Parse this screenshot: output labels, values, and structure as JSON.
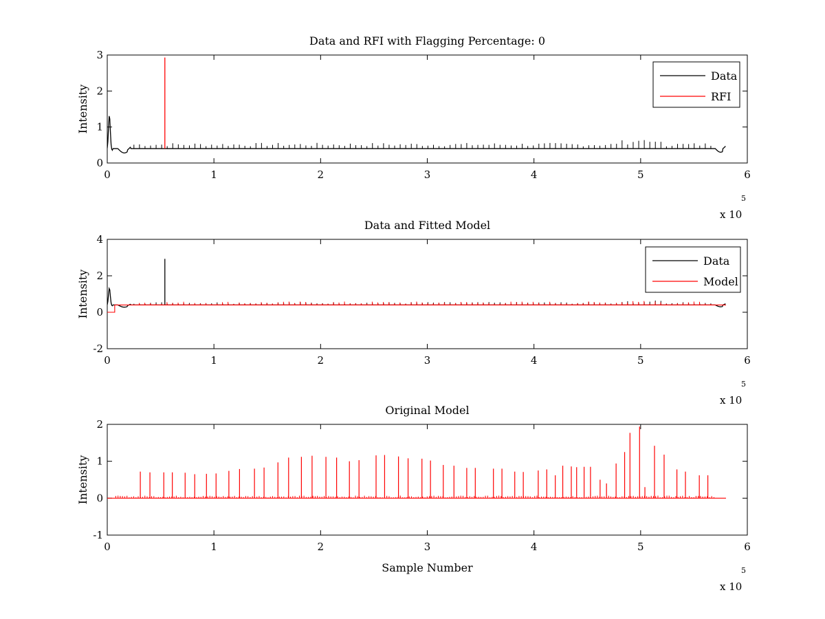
{
  "chart_data": [
    {
      "type": "line",
      "title": "Data and RFI with Flagging Percentage: 0",
      "xlabel": "",
      "ylabel": "Intensity",
      "xlim": [
        0,
        6
      ],
      "ylim": [
        0,
        3
      ],
      "xticks": [
        "0",
        "1",
        "2",
        "3",
        "4",
        "5",
        "6"
      ],
      "yticks": [
        "0",
        "1",
        "2",
        "3"
      ],
      "x_multiplier": "x 10",
      "x_multiplier_exp": "5",
      "legend_position": "top-right",
      "series": [
        {
          "name": "Data",
          "color": "#000000",
          "baseline": 0.4
        },
        {
          "name": "RFI",
          "color": "#ff0000",
          "spikes": [
            {
              "x": 0.54,
              "y": 2.93
            }
          ]
        }
      ]
    },
    {
      "type": "line",
      "title": "Data and Fitted Model",
      "xlabel": "",
      "ylabel": "Intensity",
      "xlim": [
        0,
        6
      ],
      "ylim": [
        -2,
        4
      ],
      "xticks": [
        "0",
        "1",
        "2",
        "3",
        "4",
        "5",
        "6"
      ],
      "yticks": [
        "-2",
        "0",
        "2",
        "4"
      ],
      "x_multiplier": "x 10",
      "x_multiplier_exp": "5",
      "legend_position": "top-right",
      "series": [
        {
          "name": "Data",
          "color": "#000000",
          "baseline": 0.4,
          "spikes": [
            {
              "x": 0.54,
              "y": 2.93
            }
          ]
        },
        {
          "name": "Model",
          "color": "#ff0000",
          "baseline": 0.4
        }
      ]
    },
    {
      "type": "line",
      "title": "Original Model",
      "xlabel": "Sample Number",
      "ylabel": "Intensity",
      "xlim": [
        0,
        6
      ],
      "ylim": [
        -1,
        2
      ],
      "xticks": [
        "0",
        "1",
        "2",
        "3",
        "4",
        "5",
        "6"
      ],
      "yticks": [
        "-1",
        "0",
        "1",
        "2"
      ],
      "x_multiplier": "x 10",
      "x_multiplier_exp": "5",
      "series": [
        {
          "name": "",
          "color": "#ff0000",
          "baseline": 0,
          "spikes": [
            {
              "x": 0.31,
              "y": 0.72
            },
            {
              "x": 0.4,
              "y": 0.7
            },
            {
              "x": 0.53,
              "y": 0.7
            },
            {
              "x": 0.61,
              "y": 0.7
            },
            {
              "x": 0.73,
              "y": 0.69
            },
            {
              "x": 0.82,
              "y": 0.65
            },
            {
              "x": 0.93,
              "y": 0.66
            },
            {
              "x": 1.02,
              "y": 0.67
            },
            {
              "x": 1.14,
              "y": 0.74
            },
            {
              "x": 1.24,
              "y": 0.79
            },
            {
              "x": 1.38,
              "y": 0.8
            },
            {
              "x": 1.47,
              "y": 0.83
            },
            {
              "x": 1.6,
              "y": 0.97
            },
            {
              "x": 1.7,
              "y": 1.1
            },
            {
              "x": 1.82,
              "y": 1.12
            },
            {
              "x": 1.92,
              "y": 1.15
            },
            {
              "x": 2.05,
              "y": 1.12
            },
            {
              "x": 2.15,
              "y": 1.1
            },
            {
              "x": 2.27,
              "y": 1.0
            },
            {
              "x": 2.36,
              "y": 1.03
            },
            {
              "x": 2.52,
              "y": 1.16
            },
            {
              "x": 2.6,
              "y": 1.17
            },
            {
              "x": 2.73,
              "y": 1.13
            },
            {
              "x": 2.82,
              "y": 1.08
            },
            {
              "x": 2.95,
              "y": 1.07
            },
            {
              "x": 3.03,
              "y": 1.02
            },
            {
              "x": 3.15,
              "y": 0.9
            },
            {
              "x": 3.25,
              "y": 0.88
            },
            {
              "x": 3.37,
              "y": 0.82
            },
            {
              "x": 3.45,
              "y": 0.82
            },
            {
              "x": 3.62,
              "y": 0.8
            },
            {
              "x": 3.7,
              "y": 0.8
            },
            {
              "x": 3.82,
              "y": 0.72
            },
            {
              "x": 3.9,
              "y": 0.71
            },
            {
              "x": 4.04,
              "y": 0.75
            },
            {
              "x": 4.12,
              "y": 0.78
            },
            {
              "x": 4.2,
              "y": 0.62
            },
            {
              "x": 4.27,
              "y": 0.88
            },
            {
              "x": 4.35,
              "y": 0.86
            },
            {
              "x": 4.4,
              "y": 0.84
            },
            {
              "x": 4.47,
              "y": 0.85
            },
            {
              "x": 4.53,
              "y": 0.85
            },
            {
              "x": 4.62,
              "y": 0.5
            },
            {
              "x": 4.68,
              "y": 0.4
            },
            {
              "x": 4.77,
              "y": 0.94
            },
            {
              "x": 4.85,
              "y": 1.25
            },
            {
              "x": 4.9,
              "y": 1.77
            },
            {
              "x": 4.99,
              "y": 1.94
            },
            {
              "x": 5.04,
              "y": 0.3
            },
            {
              "x": 5.13,
              "y": 1.42
            },
            {
              "x": 5.22,
              "y": 1.18
            },
            {
              "x": 5.34,
              "y": 0.78
            },
            {
              "x": 5.42,
              "y": 0.72
            },
            {
              "x": 5.55,
              "y": 0.62
            },
            {
              "x": 5.63,
              "y": 0.62
            }
          ]
        }
      ]
    }
  ]
}
